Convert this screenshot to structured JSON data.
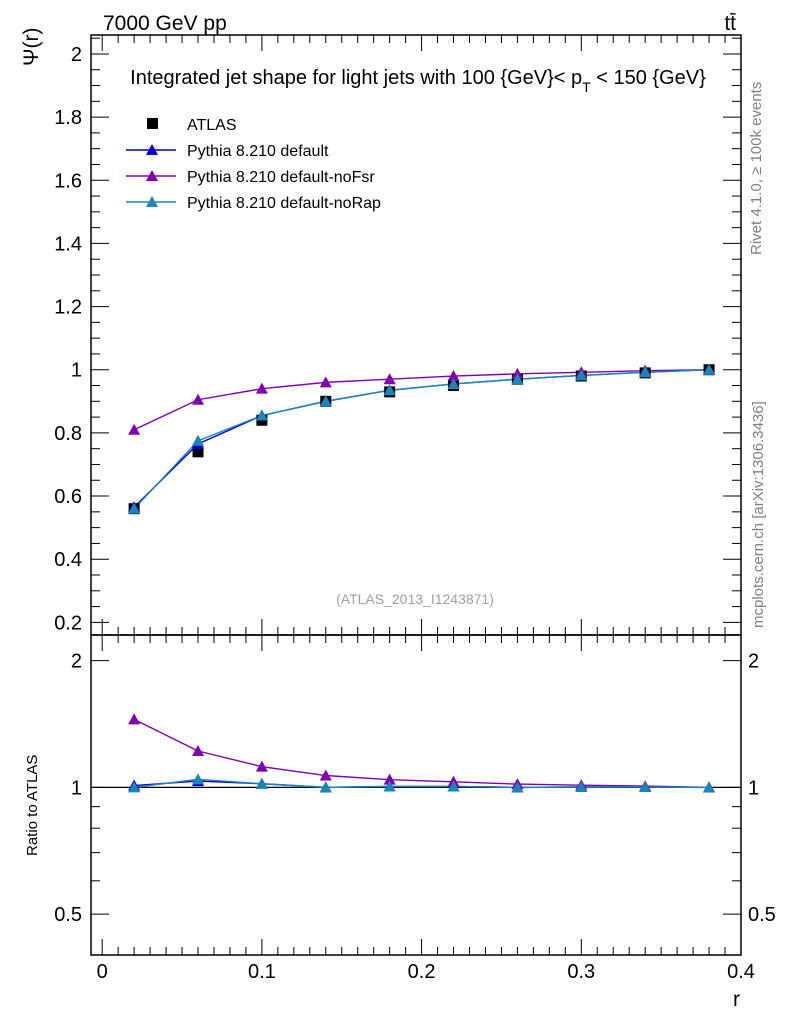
{
  "header": {
    "energy_label": "7000 GeV pp",
    "process_label": "tt̄"
  },
  "side_labels": {
    "rivet": "Rivet 4.1.0, ≥ 100k events",
    "mcplots": "mcplots.cern.ch [arXiv:1306.3436]"
  },
  "watermark": "(ATLAS_2013_I1243871)",
  "chart_data": {
    "type": "line",
    "title_parts": [
      "Integrated jet shape for light jets with 100 {GeV}< p",
      "T",
      " < 150 {GeV}"
    ],
    "xlabel": "r",
    "ylabel_main": "Ψ(r)",
    "ylabel_ratio": "Ratio to ATLAS",
    "xlim": [
      -0.007,
      0.4
    ],
    "ylim_main": [
      0.16,
      2.06
    ],
    "ylim_ratio": [
      0.4,
      2.3
    ],
    "x_ticks": [
      0,
      0.1,
      0.2,
      0.3,
      0.4
    ],
    "x_tick_labels": [
      "0",
      "0.1",
      "0.2",
      "0.3",
      "0.4"
    ],
    "y_ticks_main": [
      0.2,
      0.4,
      0.6,
      0.8,
      1,
      1.2,
      1.4,
      1.6,
      1.8,
      2
    ],
    "y_tick_labels_main": [
      "0.2",
      "0.4",
      "0.6",
      "0.8",
      "1",
      "1.2",
      "1.4",
      "1.6",
      "1.8",
      "2"
    ],
    "y_ticks_ratio": [
      0.5,
      1,
      2
    ],
    "y_tick_labels_ratio": [
      "0.5",
      "1",
      "2"
    ],
    "x": [
      0.02,
      0.06,
      0.1,
      0.14,
      0.18,
      0.22,
      0.26,
      0.3,
      0.34,
      0.38
    ],
    "data": {
      "name": "ATLAS",
      "color": "#000000",
      "values": [
        0.56,
        0.74,
        0.84,
        0.9,
        0.93,
        0.95,
        0.97,
        0.98,
        0.99,
        1.0
      ]
    },
    "series": [
      {
        "name": "Pythia 8.210 default",
        "color": "#0000cc",
        "values": [
          0.565,
          0.765,
          0.855,
          0.9,
          0.935,
          0.955,
          0.97,
          0.982,
          0.992,
          1.0
        ],
        "ratio": [
          1.01,
          1.035,
          1.02,
          1.0,
          1.005,
          1.005,
          1.0,
          1.002,
          1.002,
          1.0
        ]
      },
      {
        "name": "Pythia 8.210 default-noFsr",
        "color": "#8000b0",
        "values": [
          0.81,
          0.905,
          0.94,
          0.96,
          0.97,
          0.98,
          0.987,
          0.992,
          0.997,
          1.0
        ],
        "ratio": [
          1.45,
          1.22,
          1.12,
          1.067,
          1.043,
          1.031,
          1.018,
          1.012,
          1.007,
          1.0
        ]
      },
      {
        "name": "Pythia 8.210 default-noRap",
        "color": "#1a86b8",
        "values": [
          0.56,
          0.775,
          0.855,
          0.9,
          0.935,
          0.955,
          0.97,
          0.982,
          0.992,
          1.0
        ],
        "ratio": [
          1.0,
          1.045,
          1.02,
          1.0,
          1.005,
          1.005,
          1.0,
          1.002,
          1.002,
          1.0
        ]
      }
    ],
    "legend_position": "top-left"
  }
}
